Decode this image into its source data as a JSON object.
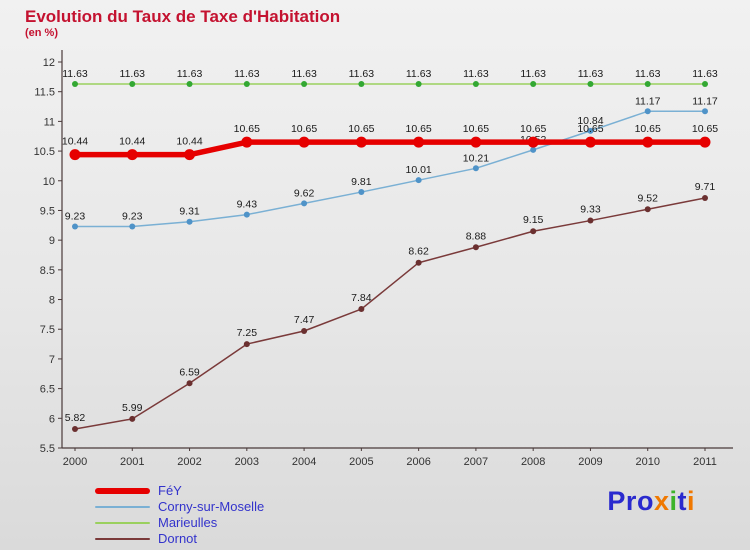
{
  "header": {
    "title": "Evolution du Taux de Taxe d'Habitation",
    "subtitle": "(en %)"
  },
  "colors": {
    "title": "#c41230",
    "legend_text": "#3333cc",
    "axis": "#4a3a3a"
  },
  "chart_data": {
    "type": "line",
    "title": "Evolution du Taux de Taxe d'Habitation",
    "subtitle": "(en %)",
    "x": [
      2000,
      2001,
      2002,
      2003,
      2004,
      2005,
      2006,
      2007,
      2008,
      2009,
      2010,
      2011
    ],
    "ylim": [
      5.5,
      12
    ],
    "ytick_step": 0.5,
    "grid": false,
    "legend_position": "bottom-left",
    "series": [
      {
        "name": "FéY",
        "color": "#e60000",
        "marker_color": "#e60000",
        "width": 5.5,
        "marker_radius": 5.5,
        "label_offset": 10,
        "values": [
          10.44,
          10.44,
          10.44,
          10.65,
          10.65,
          10.65,
          10.65,
          10.65,
          10.65,
          10.65,
          10.65,
          10.65
        ]
      },
      {
        "name": "Corny-sur-Moselle",
        "color": "#7ab0d4",
        "marker_color": "#4f93c8",
        "width": 1.5,
        "marker_radius": 3,
        "label_offset": 7,
        "values": [
          9.23,
          9.23,
          9.31,
          9.43,
          9.62,
          9.81,
          10.01,
          10.21,
          10.52,
          10.84,
          11.17,
          11.17
        ]
      },
      {
        "name": "Marieulles",
        "color": "#9ad05e",
        "marker_color": "#33a833",
        "width": 1.5,
        "marker_radius": 3,
        "label_offset": 7,
        "values": [
          11.63,
          11.63,
          11.63,
          11.63,
          11.63,
          11.63,
          11.63,
          11.63,
          11.63,
          11.63,
          11.63,
          11.63
        ]
      },
      {
        "name": "Dornot",
        "color": "#7a3a3a",
        "marker_color": "#6b3030",
        "width": 1.5,
        "marker_radius": 3,
        "label_offset": 8,
        "values": [
          5.82,
          5.99,
          6.59,
          7.25,
          7.47,
          7.84,
          8.62,
          8.88,
          9.15,
          9.33,
          9.52,
          9.71
        ]
      }
    ]
  },
  "logo": {
    "text": "Proxiti",
    "letters": [
      {
        "ch": "P",
        "color": "#2a2ace"
      },
      {
        "ch": "r",
        "color": "#2a2ace"
      },
      {
        "ch": "o",
        "color": "#2a2ace"
      },
      {
        "ch": "x",
        "color": "#f07800"
      },
      {
        "ch": "i",
        "color": "#3cb32a"
      },
      {
        "ch": "t",
        "color": "#2a2ace"
      },
      {
        "ch": "i",
        "color": "#f07800"
      }
    ]
  }
}
